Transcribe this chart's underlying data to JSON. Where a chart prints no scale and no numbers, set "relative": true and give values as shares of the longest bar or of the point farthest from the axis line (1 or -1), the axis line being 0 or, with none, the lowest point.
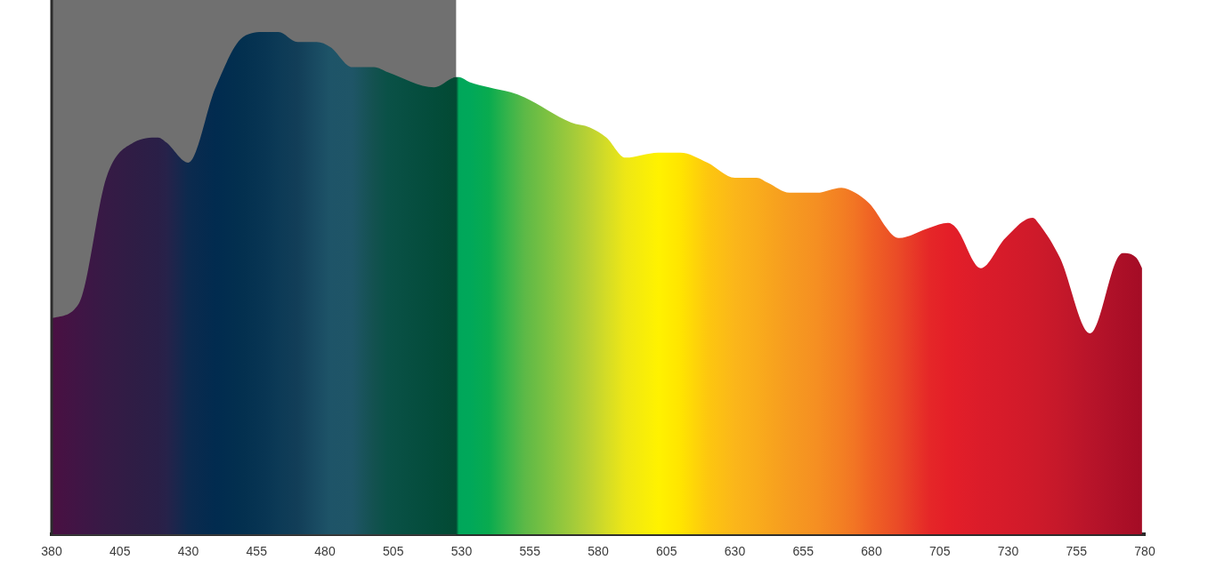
{
  "chart_data": {
    "type": "area",
    "relative": true,
    "x": [
      380,
      390,
      400,
      410,
      419,
      422,
      430,
      440,
      450,
      458,
      463,
      470,
      477,
      482,
      490,
      498,
      503,
      520,
      528,
      529,
      533,
      540,
      548,
      553,
      570,
      577,
      583,
      590,
      602,
      610,
      620,
      630,
      638,
      642,
      650,
      660,
      669,
      674,
      679,
      690,
      701,
      708,
      711,
      720,
      729,
      739,
      741,
      749,
      760,
      770,
      772,
      777,
      779
    ],
    "values": [
      0.43,
      0.46,
      0.71,
      0.78,
      0.79,
      0.78,
      0.74,
      0.89,
      0.99,
      1,
      1,
      0.98,
      0.98,
      0.97,
      0.93,
      0.93,
      0.92,
      0.89,
      0.91,
      0.91,
      0.9,
      0.89,
      0.88,
      0.87,
      0.82,
      0.81,
      0.79,
      0.75,
      0.76,
      0.76,
      0.74,
      0.71,
      0.71,
      0.7,
      0.68,
      0.68,
      0.69,
      0.68,
      0.66,
      0.59,
      0.61,
      0.62,
      0.61,
      0.53,
      0.59,
      0.63,
      0.62,
      0.55,
      0.4,
      0.55,
      0.56,
      0.55,
      0.53
    ],
    "colors": [
      "#4a1042",
      "#401545",
      "#361a45",
      "#2f1d45",
      "#2a1f47",
      "#27224a",
      "#0c2a4e",
      "#012b4f",
      "#03304f",
      "#083553",
      "#0c3a56",
      "#123e58",
      "#194b62",
      "#1e5468",
      "#1f5567",
      "#13514f",
      "#0a5147",
      "#034c3a",
      "#024a33",
      "#00a75a",
      "#00a85a",
      "#09ab4f",
      "#3db54a",
      "#5cb947",
      "#9fca3b",
      "#bcd233",
      "#d4dc26",
      "#eee715",
      "#fff200",
      "#ffe500",
      "#fdc70f",
      "#fbb61a",
      "#f9ac1c",
      "#f8a61d",
      "#f69b20",
      "#f58f22",
      "#f37f23",
      "#f27424",
      "#f06524",
      "#ea4a27",
      "#e52728",
      "#e41f28",
      "#e21e29",
      "#db1c2a",
      "#d61b2a",
      "#cf1a2a",
      "#cd1a2a",
      "#c5182a",
      "#b8142a",
      "#ad1028",
      "#ab0f27",
      "#a60d26",
      "#a30c25"
    ],
    "xlim": [
      380,
      780
    ],
    "xticks": [
      380,
      405,
      430,
      455,
      480,
      505,
      530,
      555,
      580,
      605,
      630,
      655,
      680,
      705,
      730,
      755,
      780
    ],
    "bands": [
      {
        "axis": "x",
        "from": 380,
        "to": 528,
        "color": "#707070"
      }
    ],
    "grid": false,
    "legend": false,
    "marker": "none"
  }
}
